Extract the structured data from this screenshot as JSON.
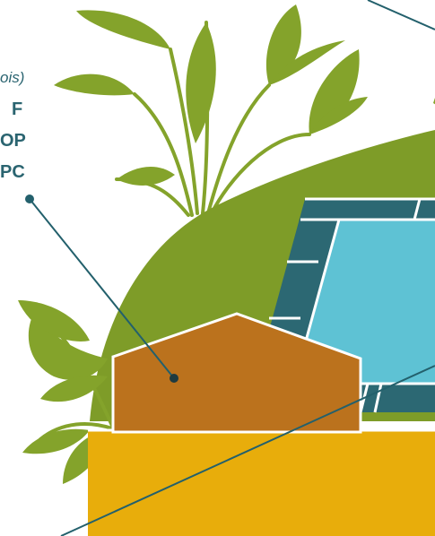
{
  "labels": {
    "top_italic": "ois)",
    "line1": "F",
    "line2": "OP",
    "line3": "PC"
  },
  "colors": {
    "leaf_green": "#84a32b",
    "hill_green": "#7e9c28",
    "pool_blue": "#5ec2d4",
    "pool_border": "#2c6873",
    "house_brown": "#bb721d",
    "ground_yellow": "#e8ad0b",
    "callout_line": "#23606c",
    "white": "#ffffff"
  },
  "icons": {
    "plant_top": "plant-leaves-icon",
    "plant_left": "plant-leaves-icon"
  }
}
